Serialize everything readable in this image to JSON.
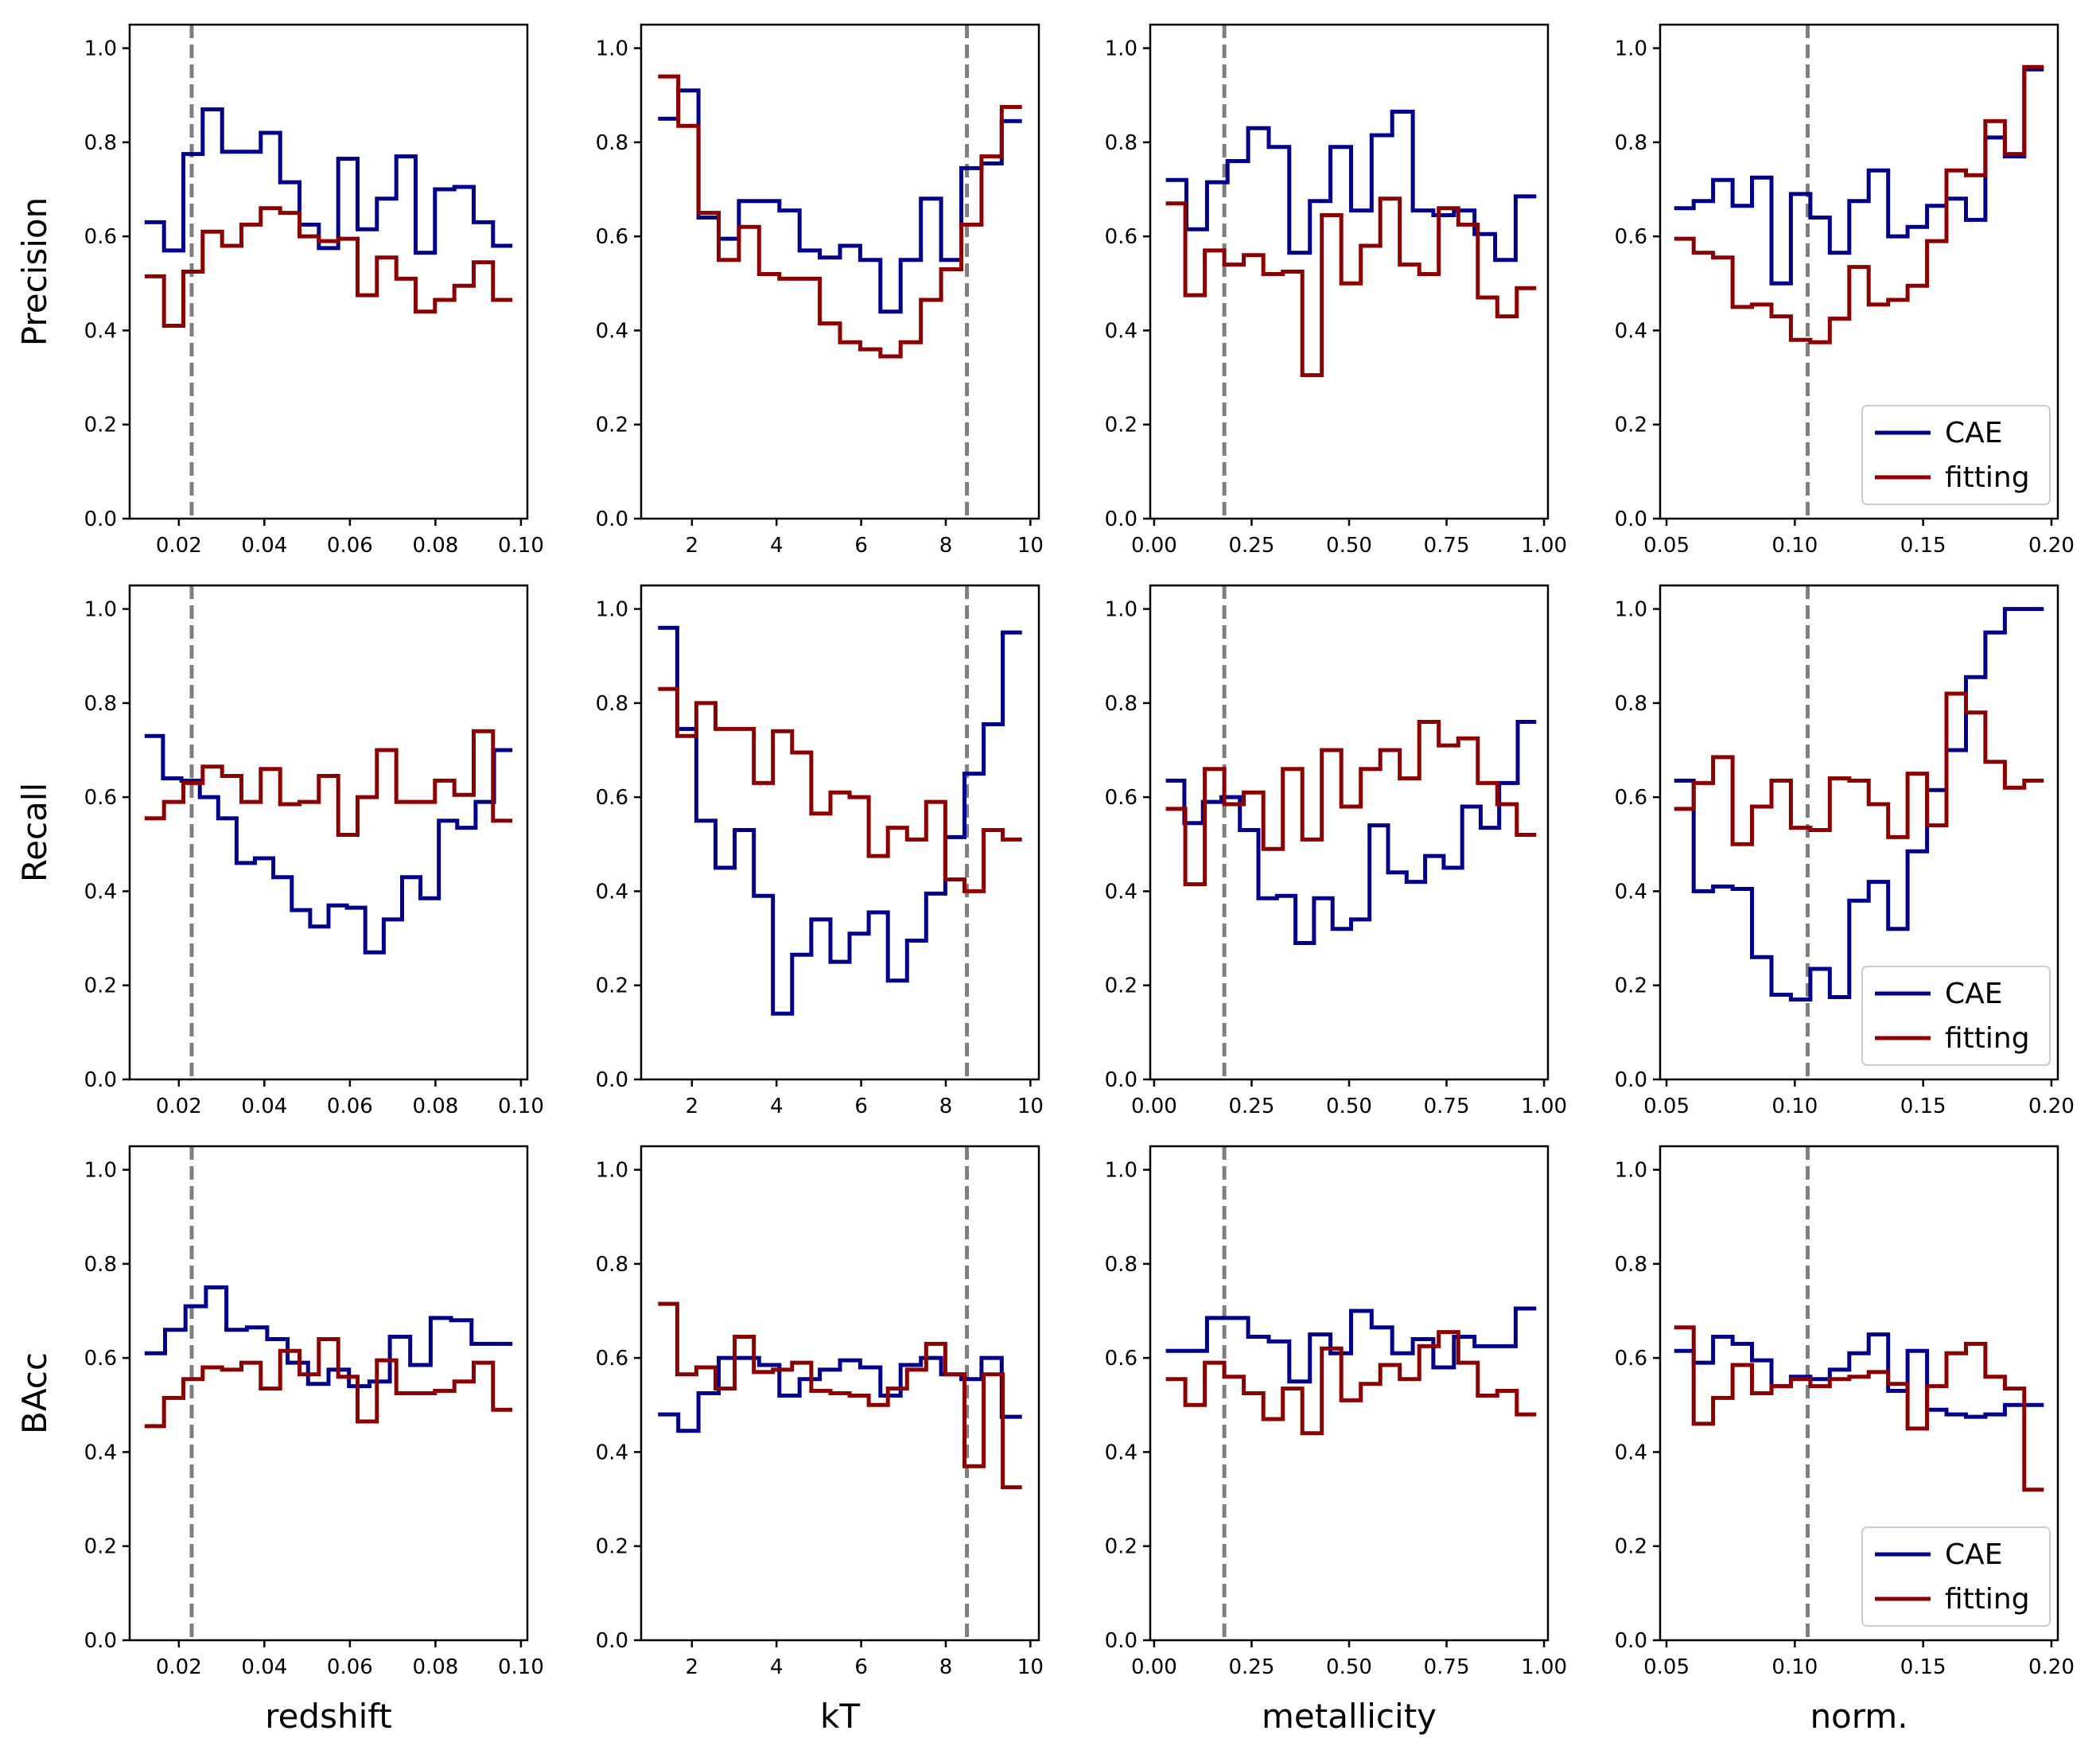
{
  "colors": {
    "CAE": "#00008b",
    "fitting": "#8b0000",
    "vline": "#808080",
    "axes": "#000000"
  },
  "legend": {
    "entries": [
      "CAE",
      "fitting"
    ],
    "position": "lower-right"
  },
  "chart_data": {
    "type": "line",
    "step": true,
    "rows": [
      {
        "metric": "Precision",
        "ylabel": "Precision"
      },
      {
        "metric": "Recall",
        "ylabel": "Recall"
      },
      {
        "metric": "BAcc",
        "ylabel": "BAcc"
      }
    ],
    "cols": [
      {
        "param": "redshift",
        "xlabel": "redshift",
        "xlim": [
          0.0085,
          0.1015
        ],
        "xticks": [
          0.02,
          0.04,
          0.06,
          0.08,
          0.1
        ],
        "xtick_labels": [
          "0.02",
          "0.04",
          "0.06",
          "0.08",
          "0.10"
        ],
        "vline": 0.023,
        "x_start": 0.012,
        "x_end": 0.098
      },
      {
        "param": "kT",
        "xlabel": "kT",
        "xlim": [
          0.8,
          10.2
        ],
        "xticks": [
          2,
          4,
          6,
          8,
          10
        ],
        "xtick_labels": [
          "2",
          "4",
          "6",
          "8",
          "10"
        ],
        "vline": 8.5,
        "x_start": 1.2,
        "x_end": 9.8
      },
      {
        "param": "metallicity",
        "xlabel": "metallicity",
        "xlim": [
          -0.01,
          1.01
        ],
        "xticks": [
          0.0,
          0.25,
          0.5,
          0.75,
          1.0
        ],
        "xtick_labels": [
          "0.00",
          "0.25",
          "0.50",
          "0.75",
          "1.00"
        ],
        "vline": 0.18,
        "x_start": 0.03,
        "x_end": 0.98
      },
      {
        "param": "norm.",
        "xlabel": "norm.",
        "xlim": [
          0.0475,
          0.2025
        ],
        "xticks": [
          0.05,
          0.1,
          0.15,
          0.2
        ],
        "xtick_labels": [
          "0.05",
          "0.10",
          "0.15",
          "0.20"
        ],
        "vline": 0.105,
        "x_start": 0.053,
        "x_end": 0.197
      }
    ],
    "ylim": [
      0.0,
      1.05
    ],
    "yticks": [
      0.0,
      0.2,
      0.4,
      0.6,
      0.8,
      1.0
    ],
    "ytick_labels": [
      "0.0",
      "0.2",
      "0.4",
      "0.6",
      "0.8",
      "1.0"
    ],
    "legend_panels": [
      3,
      7,
      11
    ],
    "panels": [
      {
        "CAE": [
          0.63,
          0.57,
          0.775,
          0.87,
          0.78,
          0.78,
          0.82,
          0.715,
          0.625,
          0.575,
          0.765,
          0.615,
          0.68,
          0.77,
          0.565,
          0.7,
          0.705,
          0.63,
          0.58
        ],
        "fitting": [
          0.515,
          0.41,
          0.525,
          0.61,
          0.58,
          0.625,
          0.66,
          0.65,
          0.6,
          0.59,
          0.595,
          0.475,
          0.555,
          0.51,
          0.44,
          0.465,
          0.495,
          0.545,
          0.465
        ]
      },
      {
        "CAE": [
          0.85,
          0.91,
          0.64,
          0.595,
          0.675,
          0.675,
          0.655,
          0.57,
          0.555,
          0.58,
          0.55,
          0.44,
          0.55,
          0.68,
          0.55,
          0.745,
          0.755,
          0.845
        ],
        "fitting": [
          0.94,
          0.835,
          0.65,
          0.55,
          0.62,
          0.52,
          0.51,
          0.51,
          0.415,
          0.375,
          0.36,
          0.345,
          0.375,
          0.465,
          0.53,
          0.625,
          0.77,
          0.875
        ]
      },
      {
        "CAE": [
          0.72,
          0.615,
          0.715,
          0.76,
          0.83,
          0.79,
          0.565,
          0.675,
          0.79,
          0.655,
          0.815,
          0.865,
          0.655,
          0.645,
          0.655,
          0.605,
          0.55,
          0.685
        ],
        "fitting": [
          0.67,
          0.475,
          0.57,
          0.54,
          0.56,
          0.52,
          0.525,
          0.305,
          0.645,
          0.5,
          0.58,
          0.68,
          0.54,
          0.52,
          0.66,
          0.625,
          0.47,
          0.43,
          0.49
        ]
      },
      {
        "CAE": [
          0.66,
          0.675,
          0.72,
          0.665,
          0.725,
          0.5,
          0.69,
          0.64,
          0.565,
          0.675,
          0.74,
          0.6,
          0.62,
          0.665,
          0.68,
          0.635,
          0.81,
          0.77,
          0.955
        ],
        "fitting": [
          0.595,
          0.565,
          0.555,
          0.45,
          0.455,
          0.43,
          0.38,
          0.375,
          0.425,
          0.535,
          0.455,
          0.465,
          0.495,
          0.59,
          0.74,
          0.73,
          0.845,
          0.775,
          0.96
        ]
      },
      {
        "CAE": [
          0.73,
          0.64,
          0.635,
          0.6,
          0.555,
          0.46,
          0.47,
          0.43,
          0.36,
          0.325,
          0.37,
          0.365,
          0.27,
          0.34,
          0.43,
          0.385,
          0.55,
          0.535,
          0.59,
          0.7
        ],
        "fitting": [
          0.555,
          0.59,
          0.63,
          0.665,
          0.645,
          0.59,
          0.66,
          0.585,
          0.59,
          0.645,
          0.52,
          0.6,
          0.7,
          0.59,
          0.59,
          0.635,
          0.605,
          0.74,
          0.55
        ]
      },
      {
        "CAE": [
          0.96,
          0.745,
          0.55,
          0.45,
          0.53,
          0.39,
          0.14,
          0.265,
          0.34,
          0.25,
          0.31,
          0.355,
          0.21,
          0.295,
          0.395,
          0.515,
          0.65,
          0.755,
          0.95
        ],
        "fitting": [
          0.83,
          0.73,
          0.8,
          0.745,
          0.745,
          0.63,
          0.74,
          0.695,
          0.565,
          0.61,
          0.6,
          0.475,
          0.535,
          0.51,
          0.59,
          0.425,
          0.4,
          0.53,
          0.51
        ]
      },
      {
        "CAE": [
          0.635,
          0.545,
          0.59,
          0.6,
          0.53,
          0.385,
          0.39,
          0.29,
          0.385,
          0.32,
          0.34,
          0.54,
          0.44,
          0.42,
          0.475,
          0.45,
          0.58,
          0.535,
          0.63,
          0.76
        ],
        "fitting": [
          0.575,
          0.415,
          0.66,
          0.585,
          0.61,
          0.49,
          0.66,
          0.51,
          0.7,
          0.58,
          0.66,
          0.7,
          0.64,
          0.76,
          0.71,
          0.725,
          0.63,
          0.585,
          0.52
        ]
      },
      {
        "CAE": [
          0.635,
          0.4,
          0.41,
          0.405,
          0.26,
          0.18,
          0.17,
          0.235,
          0.175,
          0.38,
          0.42,
          0.32,
          0.485,
          0.615,
          0.7,
          0.855,
          0.95,
          1.0,
          1.0
        ],
        "fitting": [
          0.575,
          0.63,
          0.685,
          0.5,
          0.58,
          0.635,
          0.535,
          0.53,
          0.64,
          0.635,
          0.585,
          0.515,
          0.65,
          0.54,
          0.82,
          0.78,
          0.675,
          0.62,
          0.635
        ]
      },
      {
        "CAE": [
          0.61,
          0.66,
          0.71,
          0.75,
          0.66,
          0.665,
          0.64,
          0.59,
          0.545,
          0.575,
          0.54,
          0.55,
          0.645,
          0.585,
          0.685,
          0.68,
          0.63,
          0.63
        ],
        "fitting": [
          0.455,
          0.515,
          0.555,
          0.58,
          0.575,
          0.59,
          0.535,
          0.615,
          0.565,
          0.64,
          0.56,
          0.465,
          0.595,
          0.525,
          0.525,
          0.53,
          0.55,
          0.59,
          0.49
        ]
      },
      {
        "CAE": [
          0.48,
          0.445,
          0.525,
          0.6,
          0.6,
          0.585,
          0.52,
          0.555,
          0.575,
          0.595,
          0.58,
          0.52,
          0.585,
          0.6,
          0.565,
          0.555,
          0.6,
          0.475
        ],
        "fitting": [
          0.715,
          0.565,
          0.58,
          0.535,
          0.645,
          0.57,
          0.575,
          0.59,
          0.53,
          0.525,
          0.52,
          0.5,
          0.535,
          0.575,
          0.63,
          0.565,
          0.37,
          0.565,
          0.325
        ]
      },
      {
        "CAE": [
          0.615,
          0.615,
          0.685,
          0.685,
          0.645,
          0.635,
          0.55,
          0.65,
          0.61,
          0.7,
          0.665,
          0.61,
          0.64,
          0.58,
          0.645,
          0.625,
          0.625,
          0.705
        ],
        "fitting": [
          0.555,
          0.5,
          0.59,
          0.56,
          0.525,
          0.47,
          0.535,
          0.44,
          0.62,
          0.51,
          0.545,
          0.585,
          0.555,
          0.625,
          0.655,
          0.59,
          0.52,
          0.53,
          0.48
        ]
      },
      {
        "CAE": [
          0.615,
          0.59,
          0.645,
          0.63,
          0.595,
          0.54,
          0.56,
          0.555,
          0.575,
          0.61,
          0.65,
          0.53,
          0.615,
          0.49,
          0.48,
          0.475,
          0.48,
          0.5,
          0.5
        ],
        "fitting": [
          0.665,
          0.46,
          0.515,
          0.585,
          0.525,
          0.54,
          0.555,
          0.54,
          0.555,
          0.56,
          0.57,
          0.545,
          0.45,
          0.54,
          0.61,
          0.63,
          0.56,
          0.535,
          0.32
        ]
      }
    ]
  }
}
